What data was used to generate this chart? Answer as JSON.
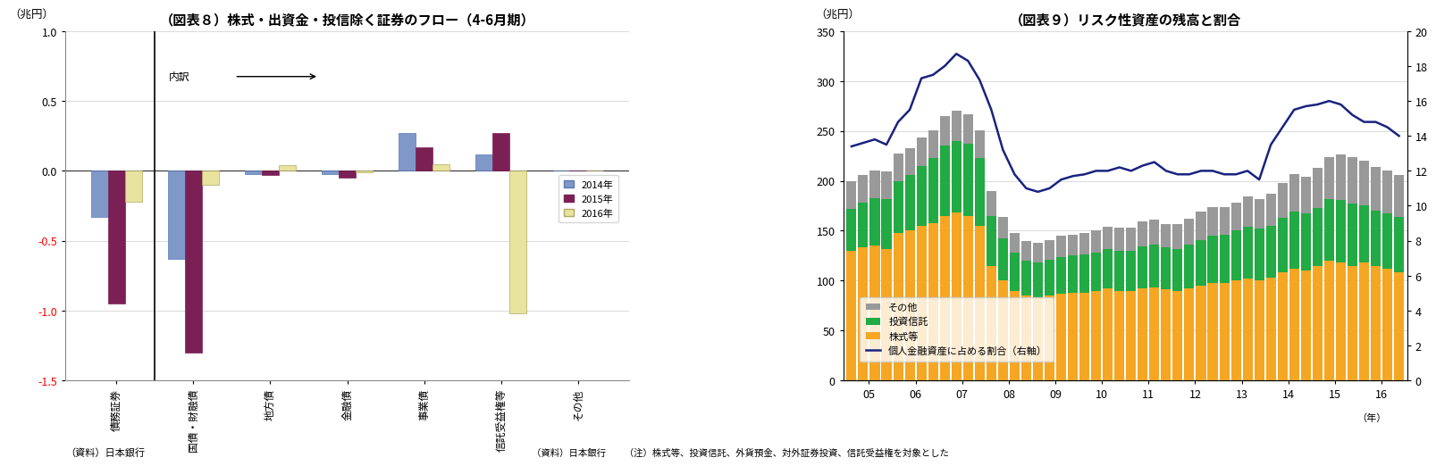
{
  "chart8": {
    "title": "（図表８）株式・出資金・投信除く証券のフロー（4-6月期）",
    "ylabel": "（兆円）",
    "ylim": [
      -1.5,
      1.0
    ],
    "yticks": [
      -1.5,
      -1.0,
      -0.5,
      0.0,
      0.5,
      1.0
    ],
    "ytick_labels": [
      "-1.5",
      "-1.0",
      "-0.5",
      "0.0",
      "0.5",
      "1.0"
    ],
    "categories": [
      "債務証券",
      "国債・財融債",
      "地方債",
      "金融債",
      "事業債",
      "信託受益権等",
      "その他"
    ],
    "series": {
      "2014年": {
        "color": "#8098c8",
        "edgecolor": "#5878b8",
        "values": [
          -0.33,
          -0.63,
          -0.02,
          -0.02,
          0.27,
          0.12,
          0.0
        ]
      },
      "2015年": {
        "color": "#7b2055",
        "edgecolor": "#7b2055",
        "values": [
          -0.95,
          -1.3,
          -0.03,
          -0.05,
          0.17,
          0.27,
          0.0
        ]
      },
      "2016年": {
        "color": "#e8e4a0",
        "edgecolor": "#b0a860",
        "values": [
          -0.22,
          -0.1,
          0.04,
          -0.01,
          0.05,
          -1.02,
          0.0
        ]
      }
    },
    "annotation": "内訳　→",
    "legend_labels": [
      "2014年",
      "2015年",
      "2016年"
    ],
    "source": "（資料）日本銀行"
  },
  "chart9": {
    "title": "（図表９）リスク性資産の残高と割合",
    "ylabel_left": "（兆円）",
    "ylim_left": [
      0,
      350
    ],
    "ylim_right": [
      0,
      20
    ],
    "yticks_left": [
      0,
      50,
      100,
      150,
      200,
      250,
      300,
      350
    ],
    "yticks_right": [
      0,
      2,
      4,
      6,
      8,
      10,
      12,
      14,
      16,
      18,
      20
    ],
    "xtick_labels": [
      "05",
      "06",
      "07",
      "08",
      "09",
      "10",
      "11",
      "12",
      "13",
      "14",
      "15",
      "16"
    ],
    "bar_years": [
      "05",
      "05",
      "05",
      "05",
      "06",
      "06",
      "06",
      "06",
      "07",
      "07",
      "07",
      "07",
      "08",
      "08",
      "08",
      "08",
      "09",
      "09",
      "09",
      "09",
      "10",
      "10",
      "10",
      "10",
      "11",
      "11",
      "11",
      "11",
      "12",
      "12",
      "12",
      "12",
      "13",
      "13",
      "13",
      "13",
      "14",
      "14",
      "14",
      "14",
      "15",
      "15",
      "15",
      "15",
      "16",
      "16",
      "16",
      "16"
    ],
    "kabushiki": [
      130,
      133,
      135,
      132,
      148,
      150,
      155,
      158,
      165,
      168,
      165,
      155,
      115,
      100,
      90,
      85,
      83,
      85,
      87,
      88,
      88,
      90,
      92,
      90,
      90,
      92,
      93,
      91,
      90,
      92,
      95,
      98,
      98,
      100,
      102,
      100,
      103,
      108,
      112,
      110,
      115,
      120,
      118,
      115,
      118,
      115,
      112,
      108
    ],
    "toushin": [
      42,
      45,
      48,
      50,
      52,
      56,
      60,
      65,
      70,
      72,
      72,
      68,
      50,
      42,
      38,
      35,
      35,
      36,
      37,
      37,
      38,
      38,
      40,
      40,
      40,
      42,
      43,
      42,
      42,
      44,
      46,
      47,
      48,
      50,
      52,
      52,
      52,
      55,
      57,
      57,
      58,
      62,
      63,
      62,
      57,
      55,
      55,
      56
    ],
    "sonota": [
      28,
      28,
      27,
      27,
      27,
      27,
      28,
      28,
      30,
      30,
      30,
      28,
      25,
      22,
      20,
      20,
      20,
      20,
      21,
      21,
      22,
      22,
      22,
      23,
      23,
      25,
      25,
      24,
      25,
      26,
      28,
      29,
      28,
      28,
      30,
      30,
      32,
      35,
      38,
      37,
      40,
      42,
      45,
      47,
      45,
      44,
      43,
      42
    ],
    "line": [
      13.4,
      13.6,
      13.8,
      13.5,
      14.8,
      15.5,
      17.3,
      17.5,
      18.0,
      18.7,
      18.3,
      17.2,
      15.5,
      13.2,
      11.8,
      11.0,
      10.8,
      11.0,
      11.5,
      11.7,
      11.8,
      12.0,
      12.0,
      12.2,
      12.0,
      12.3,
      12.5,
      12.0,
      11.8,
      11.8,
      12.0,
      12.0,
      11.8,
      11.8,
      12.0,
      11.5,
      13.5,
      14.5,
      15.5,
      15.7,
      15.8,
      16.0,
      15.8,
      15.2,
      14.8,
      14.8,
      14.5,
      14.0
    ],
    "colors": {
      "kabushiki": "#f5a623",
      "toushin": "#22aa44",
      "sonota": "#999999",
      "line": "#1a237e"
    },
    "source": "（資料）日本銀行　　（注）株式等、投資信託、外貨預金、対外証券投資、信託受益権を対象とした",
    "year_label": "（年）"
  }
}
